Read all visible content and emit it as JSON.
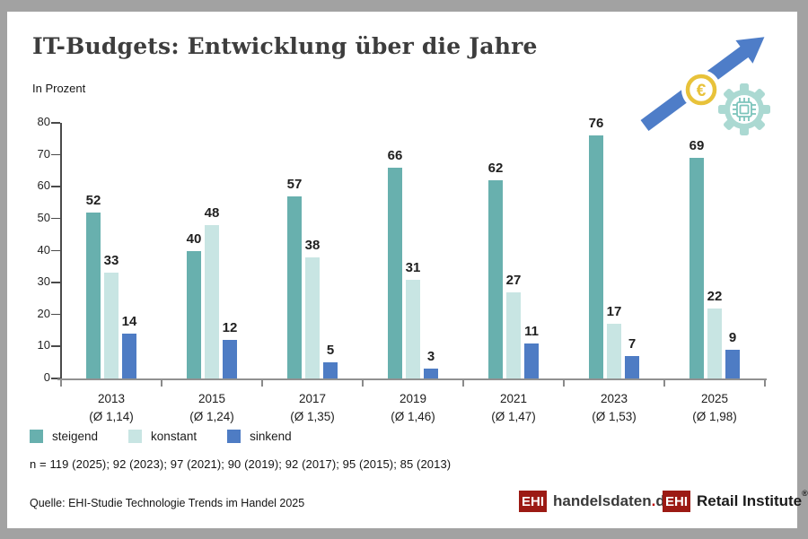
{
  "frame": {
    "background": "#a2a2a2",
    "panel_background": "#ffffff"
  },
  "chart_data": {
    "type": "bar",
    "title": "IT-Budgets: Entwicklung über die Jahre",
    "unit_label": "In Prozent",
    "categories": [
      "2013",
      "2015",
      "2017",
      "2019",
      "2021",
      "2023",
      "2025"
    ],
    "category_sublabels": [
      "(Ø 1,14)",
      "(Ø 1,24)",
      "(Ø 1,35)",
      "(Ø 1,46)",
      "(Ø 1,47)",
      "(Ø 1,53)",
      "(Ø 1,98)"
    ],
    "series": [
      {
        "name": "steigend",
        "color": "#68b0ae",
        "values": [
          52,
          40,
          57,
          66,
          62,
          76,
          69
        ]
      },
      {
        "name": "konstant",
        "color": "#c8e5e3",
        "values": [
          33,
          48,
          38,
          31,
          27,
          17,
          22
        ]
      },
      {
        "name": "sinkend",
        "color": "#4e7cc4",
        "values": [
          14,
          12,
          5,
          3,
          11,
          7,
          9
        ]
      }
    ],
    "ylim": [
      0,
      80
    ],
    "ytick_step": 10,
    "grid": false,
    "legend_position": "bottom-left"
  },
  "footnotes": {
    "sample_sizes": "n = 119 (2025); 92 (2023); 97 (2021); 90 (2019); 92 (2017); 95 (2015); 85 (2013)",
    "source": "Quelle: EHI-Studie Technologie Trends im Handel 2025"
  },
  "branding": {
    "box_color": "#9c1a14",
    "dot_color": "#c00d0d",
    "logo1": {
      "prefix": "EHI",
      "name": "handelsdaten",
      "dot": ".",
      "tld": "de"
    },
    "logo2": {
      "prefix": "EHI",
      "name": "Retail Institute",
      "registered": "®"
    }
  },
  "icons": {
    "arrow_color": "#4e7dc8",
    "euro_color": "#e8c23a",
    "gear_color": "#abd9d2",
    "chip_color": "#7cc4bb",
    "euro_symbol": "€"
  }
}
